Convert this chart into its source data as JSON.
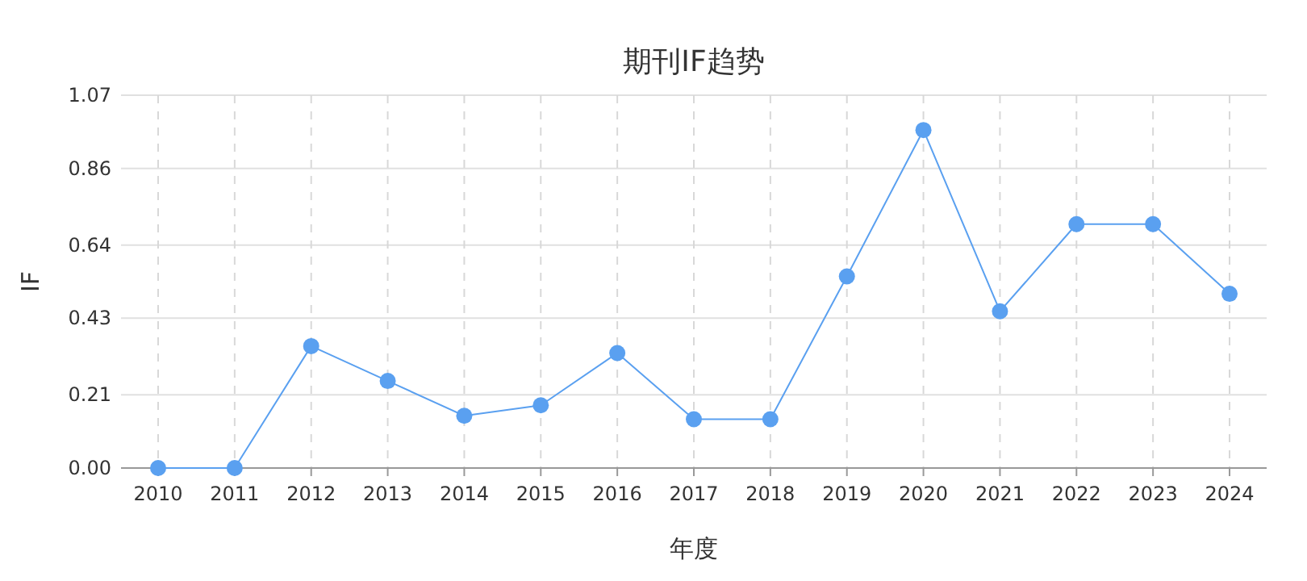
{
  "chart_data": {
    "type": "line",
    "title": "期刊IF趋势",
    "xlabel": "年度",
    "ylabel": "IF",
    "categories": [
      "2010",
      "2011",
      "2012",
      "2013",
      "2014",
      "2015",
      "2016",
      "2017",
      "2018",
      "2019",
      "2020",
      "2021",
      "2022",
      "2023",
      "2024"
    ],
    "series": [
      {
        "color": "#5aa0f0",
        "values": [
          0,
          0,
          0.35,
          0.25,
          0.15,
          0.18,
          0.33,
          0.14,
          0.14,
          0.55,
          0.97,
          0.45,
          0.7,
          0.7,
          0.5
        ]
      }
    ],
    "ylim": [
      0,
      1.07
    ],
    "yticks": [
      {
        "value": 0,
        "label": "0.00"
      },
      0.21,
      0.43,
      0.64,
      0.86,
      1.07
    ],
    "grid": true,
    "marker": "circle",
    "line_style": "solid"
  }
}
